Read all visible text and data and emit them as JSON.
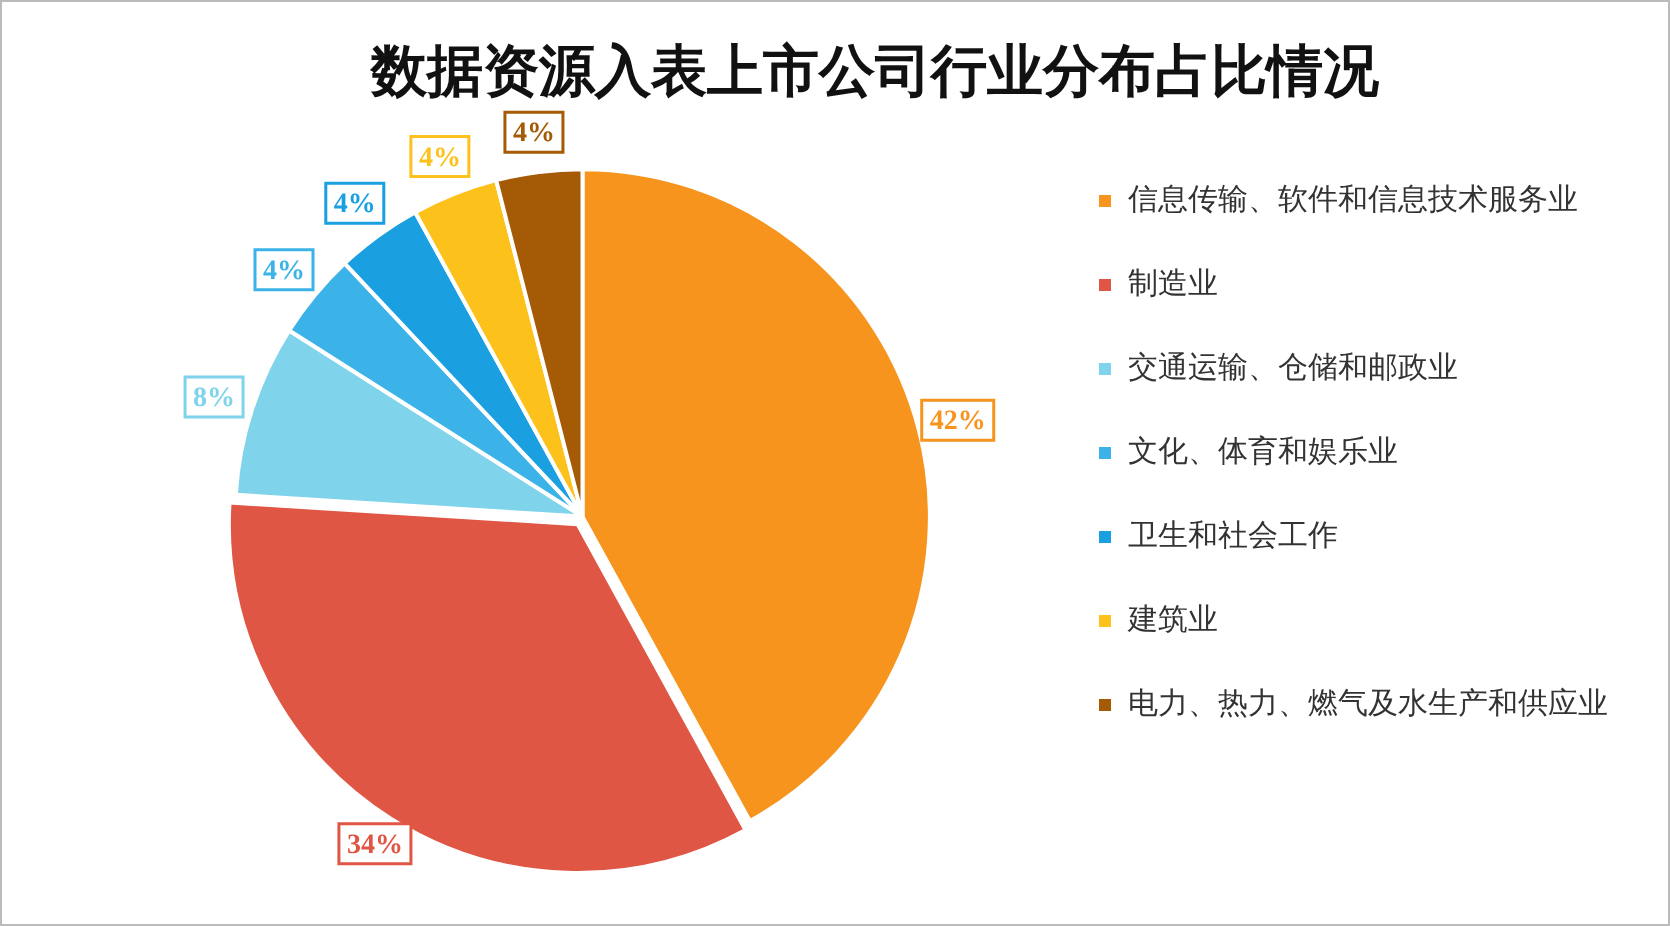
{
  "chart_data": {
    "type": "pie",
    "title": "数据资源入表上市公司行业分布占比情况",
    "categories": [
      "信息传输、软件和信息技术服务业",
      "制造业",
      "交通运输、仓储和邮政业",
      "文化、体育和娱乐业",
      "卫生和社会工作",
      "建筑业",
      "电力、热力、燃气及水生产和供应业"
    ],
    "values": [
      42,
      34,
      8,
      4,
      4,
      4,
      4
    ],
    "colors": [
      "#f7941d",
      "#e05644",
      "#7fd3ea",
      "#3cb3e8",
      "#1a9fe0",
      "#fcc21b",
      "#a55a05"
    ],
    "value_labels": [
      "42%",
      "34%",
      "8%",
      "4%",
      "4%",
      "4%",
      "4%"
    ],
    "legend": "right"
  }
}
